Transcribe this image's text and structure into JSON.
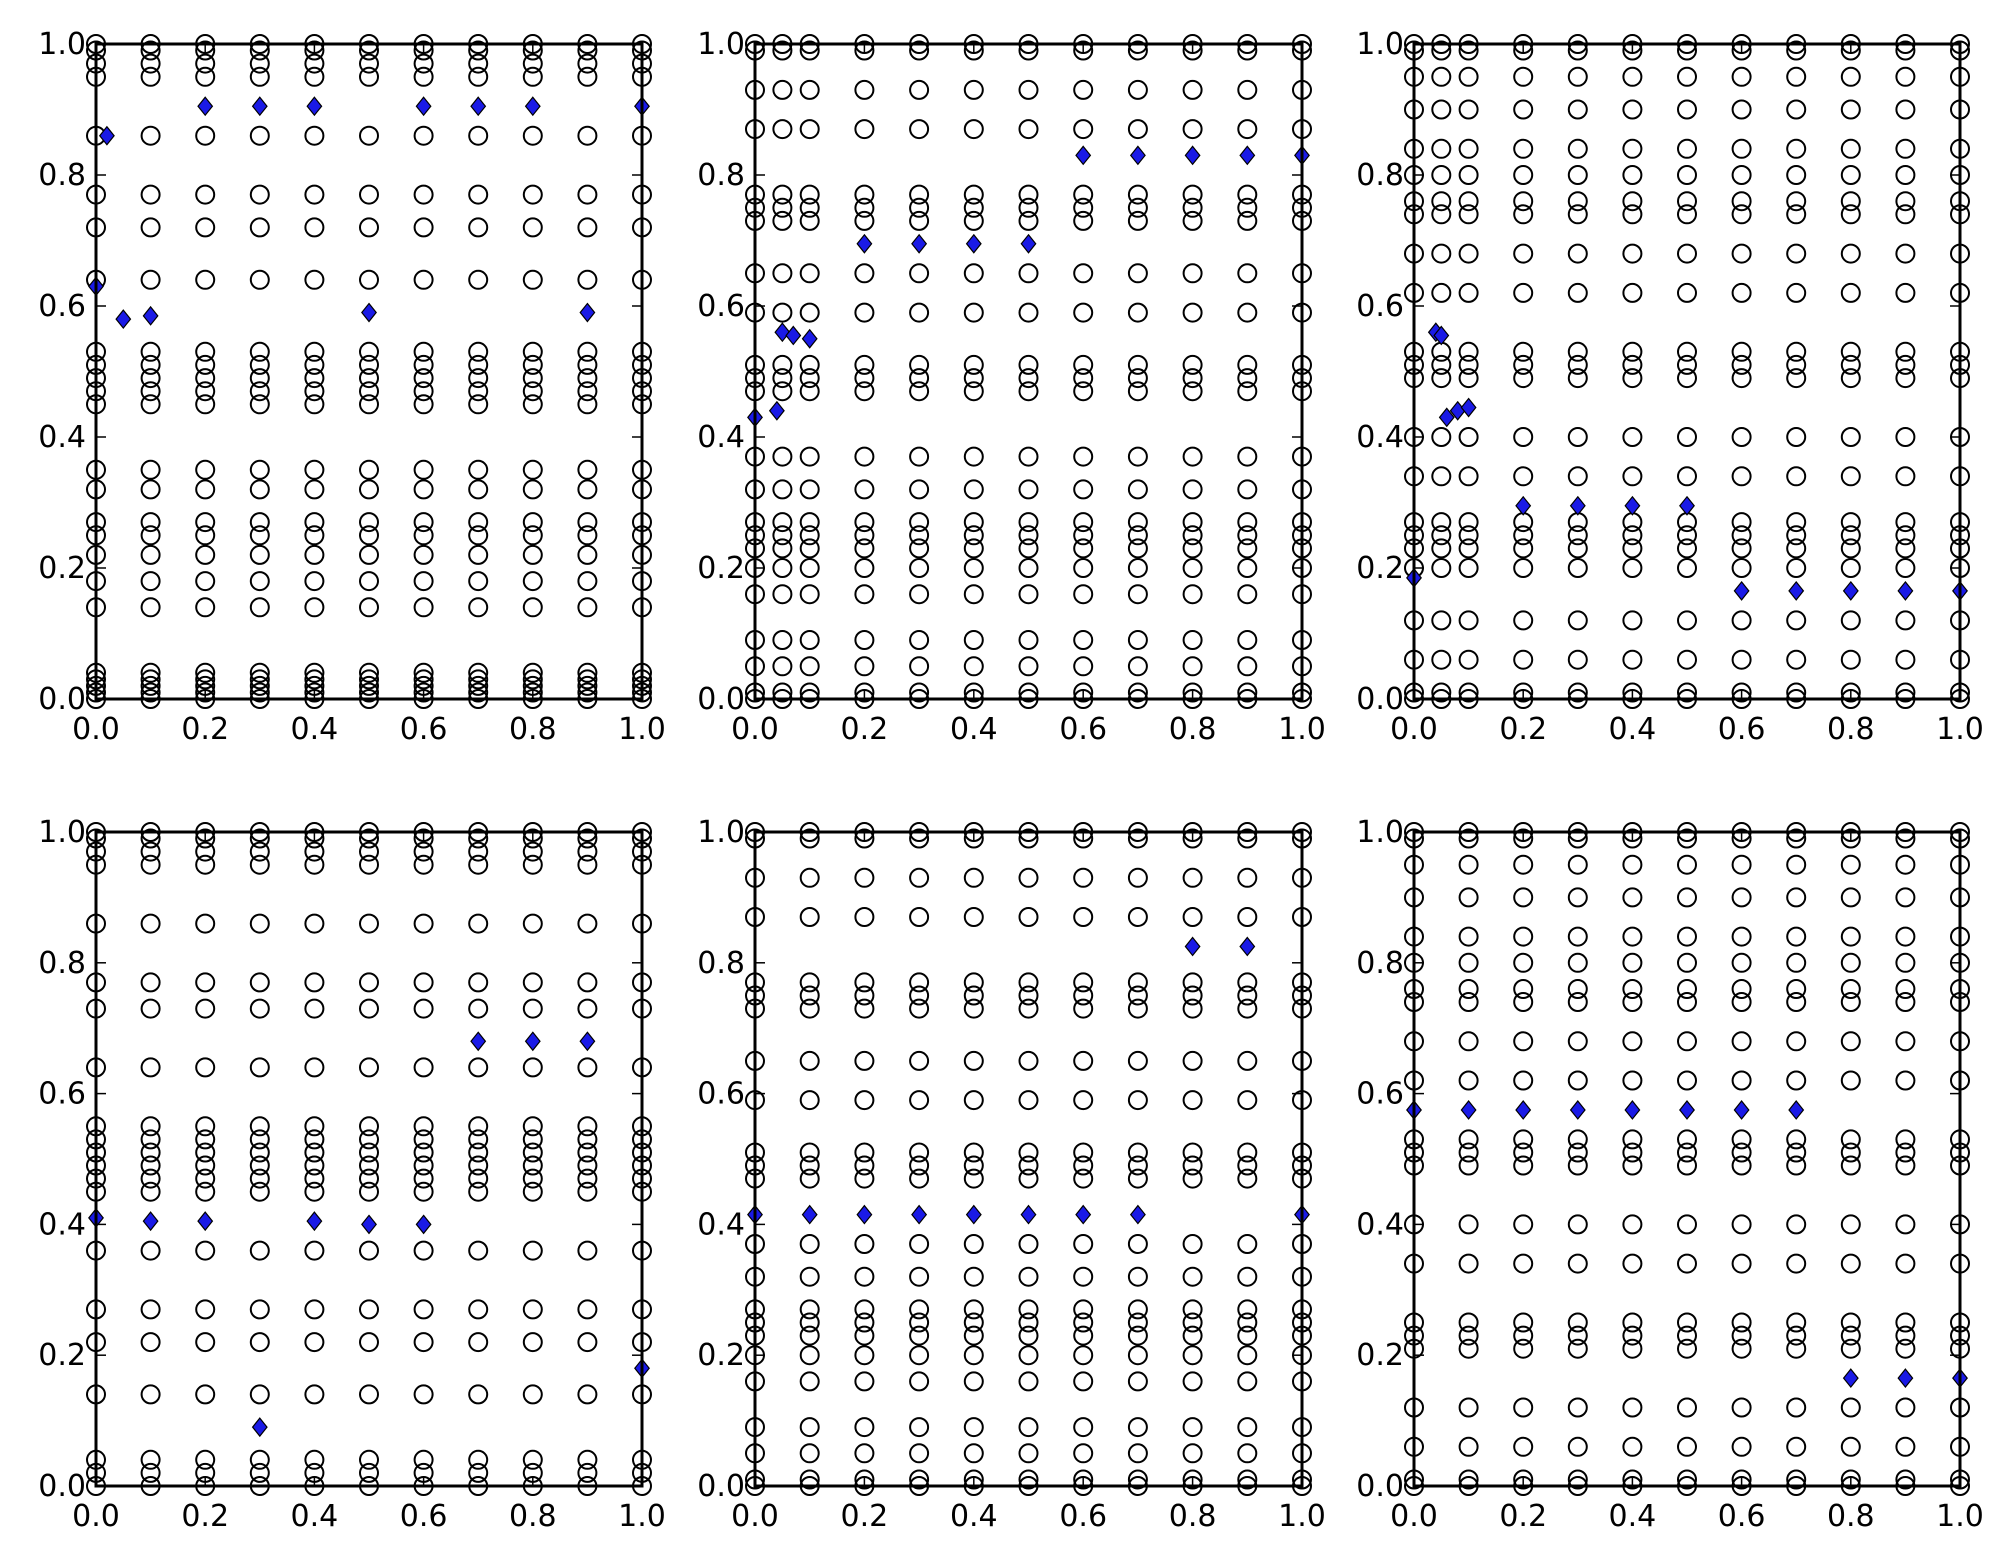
{
  "figure": {
    "layout": "2x3 grid of scatter panels",
    "circle_color": "#000000",
    "diamond_color": "#1a1ae6",
    "background": "#ffffff"
  },
  "chart_data": [
    {
      "type": "scatter",
      "panel": "top-left",
      "xlim": [
        0,
        1
      ],
      "ylim": [
        0,
        1
      ],
      "xticks": [
        "0.0",
        "0.2",
        "0.4",
        "0.6",
        "0.8",
        "1.0"
      ],
      "yticks": [
        "0.0",
        "0.2",
        "0.4",
        "0.6",
        "0.8",
        "1.0"
      ],
      "grid": false,
      "circle_columns_x": [
        0.0,
        0.1,
        0.2,
        0.3,
        0.4,
        0.5,
        0.6,
        0.7,
        0.8,
        0.9,
        1.0
      ],
      "circle_rows_y": [
        0.0,
        0.01,
        0.02,
        0.03,
        0.04,
        0.14,
        0.18,
        0.22,
        0.25,
        0.27,
        0.32,
        0.35,
        0.45,
        0.47,
        0.49,
        0.51,
        0.53,
        0.64,
        0.72,
        0.77,
        0.86,
        0.95,
        0.97,
        0.99,
        1.0
      ],
      "diamonds": [
        [
          0.0,
          0.63
        ],
        [
          0.02,
          0.86
        ],
        [
          0.05,
          0.58
        ],
        [
          0.1,
          0.585
        ],
        [
          0.2,
          0.905
        ],
        [
          0.3,
          0.905
        ],
        [
          0.4,
          0.905
        ],
        [
          0.5,
          0.59
        ],
        [
          0.6,
          0.905
        ],
        [
          0.7,
          0.905
        ],
        [
          0.8,
          0.905
        ],
        [
          0.9,
          0.59
        ],
        [
          1.0,
          0.905
        ]
      ]
    },
    {
      "type": "scatter",
      "panel": "top-center",
      "xlim": [
        0,
        1
      ],
      "ylim": [
        0,
        1
      ],
      "xticks": [
        "0.0",
        "0.2",
        "0.4",
        "0.6",
        "0.8",
        "1.0"
      ],
      "yticks": [
        "0.0",
        "0.2",
        "0.4",
        "0.6",
        "0.8",
        "1.0"
      ],
      "grid": false,
      "circle_columns_x": [
        0.0,
        0.05,
        0.1,
        0.2,
        0.3,
        0.4,
        0.5,
        0.6,
        0.7,
        0.8,
        0.9,
        1.0
      ],
      "circle_rows_y": [
        0.0,
        0.01,
        0.05,
        0.09,
        0.16,
        0.2,
        0.23,
        0.25,
        0.27,
        0.32,
        0.37,
        0.47,
        0.49,
        0.51,
        0.59,
        0.65,
        0.73,
        0.75,
        0.77,
        0.87,
        0.93,
        0.99,
        1.0
      ],
      "diamonds": [
        [
          0.0,
          0.43
        ],
        [
          0.04,
          0.44
        ],
        [
          0.05,
          0.56
        ],
        [
          0.07,
          0.555
        ],
        [
          0.1,
          0.55
        ],
        [
          0.2,
          0.695
        ],
        [
          0.3,
          0.695
        ],
        [
          0.4,
          0.695
        ],
        [
          0.5,
          0.695
        ],
        [
          0.6,
          0.83
        ],
        [
          0.7,
          0.83
        ],
        [
          0.8,
          0.83
        ],
        [
          0.9,
          0.83
        ],
        [
          1.0,
          0.83
        ]
      ]
    },
    {
      "type": "scatter",
      "panel": "top-right",
      "xlim": [
        0,
        1
      ],
      "ylim": [
        0,
        1
      ],
      "xticks": [
        "0.0",
        "0.2",
        "0.4",
        "0.6",
        "0.8",
        "1.0"
      ],
      "yticks": [
        "0.0",
        "0.2",
        "0.4",
        "0.6",
        "0.8",
        "1.0"
      ],
      "grid": false,
      "circle_columns_x": [
        0.0,
        0.05,
        0.1,
        0.2,
        0.3,
        0.4,
        0.5,
        0.6,
        0.7,
        0.8,
        0.9,
        1.0
      ],
      "circle_rows_y": [
        0.0,
        0.01,
        0.06,
        0.12,
        0.2,
        0.23,
        0.25,
        0.27,
        0.34,
        0.4,
        0.49,
        0.51,
        0.53,
        0.62,
        0.68,
        0.74,
        0.76,
        0.8,
        0.84,
        0.9,
        0.95,
        0.99,
        1.0
      ],
      "diamonds": [
        [
          0.0,
          0.185
        ],
        [
          0.04,
          0.56
        ],
        [
          0.05,
          0.555
        ],
        [
          0.06,
          0.43
        ],
        [
          0.08,
          0.44
        ],
        [
          0.1,
          0.445
        ],
        [
          0.2,
          0.295
        ],
        [
          0.3,
          0.295
        ],
        [
          0.4,
          0.295
        ],
        [
          0.5,
          0.295
        ],
        [
          0.6,
          0.165
        ],
        [
          0.7,
          0.165
        ],
        [
          0.8,
          0.165
        ],
        [
          0.9,
          0.165
        ],
        [
          1.0,
          0.165
        ]
      ]
    },
    {
      "type": "scatter",
      "panel": "bottom-left",
      "xlim": [
        0,
        1
      ],
      "ylim": [
        0,
        1
      ],
      "xticks": [
        "0.0",
        "0.2",
        "0.4",
        "0.6",
        "0.8",
        "1.0"
      ],
      "yticks": [
        "0.0",
        "0.2",
        "0.4",
        "0.6",
        "0.8",
        "1.0"
      ],
      "grid": false,
      "circle_columns_x": [
        0.0,
        0.1,
        0.2,
        0.3,
        0.4,
        0.5,
        0.6,
        0.7,
        0.8,
        0.9,
        1.0
      ],
      "circle_rows_y": [
        0.0,
        0.02,
        0.04,
        0.14,
        0.22,
        0.27,
        0.36,
        0.45,
        0.47,
        0.49,
        0.51,
        0.53,
        0.55,
        0.64,
        0.73,
        0.77,
        0.86,
        0.95,
        0.97,
        0.99,
        1.0
      ],
      "diamonds": [
        [
          0.0,
          0.41
        ],
        [
          0.1,
          0.405
        ],
        [
          0.2,
          0.405
        ],
        [
          0.3,
          0.09
        ],
        [
          0.4,
          0.405
        ],
        [
          0.5,
          0.4
        ],
        [
          0.6,
          0.4
        ],
        [
          0.7,
          0.68
        ],
        [
          0.8,
          0.68
        ],
        [
          0.9,
          0.68
        ],
        [
          1.0,
          0.18
        ]
      ]
    },
    {
      "type": "scatter",
      "panel": "bottom-center",
      "xlim": [
        0,
        1
      ],
      "ylim": [
        0,
        1
      ],
      "xticks": [
        "0.0",
        "0.2",
        "0.4",
        "0.6",
        "0.8",
        "1.0"
      ],
      "yticks": [
        "0.0",
        "0.2",
        "0.4",
        "0.6",
        "0.8",
        "1.0"
      ],
      "grid": false,
      "circle_columns_x": [
        0.0,
        0.1,
        0.2,
        0.3,
        0.4,
        0.5,
        0.6,
        0.7,
        0.8,
        0.9,
        1.0
      ],
      "circle_rows_y": [
        0.0,
        0.01,
        0.05,
        0.09,
        0.16,
        0.2,
        0.23,
        0.25,
        0.27,
        0.32,
        0.37,
        0.47,
        0.49,
        0.51,
        0.59,
        0.65,
        0.73,
        0.75,
        0.77,
        0.87,
        0.93,
        0.99,
        1.0
      ],
      "diamonds": [
        [
          0.0,
          0.415
        ],
        [
          0.1,
          0.415
        ],
        [
          0.2,
          0.415
        ],
        [
          0.3,
          0.415
        ],
        [
          0.4,
          0.415
        ],
        [
          0.5,
          0.415
        ],
        [
          0.6,
          0.415
        ],
        [
          0.7,
          0.415
        ],
        [
          0.8,
          0.825
        ],
        [
          0.9,
          0.825
        ],
        [
          1.0,
          0.415
        ]
      ]
    },
    {
      "type": "scatter",
      "panel": "bottom-right",
      "xlim": [
        0,
        1
      ],
      "ylim": [
        0,
        1
      ],
      "xticks": [
        "0.0",
        "0.2",
        "0.4",
        "0.6",
        "0.8",
        "1.0"
      ],
      "yticks": [
        "0.0",
        "0.2",
        "0.4",
        "0.6",
        "0.8",
        "1.0"
      ],
      "grid": false,
      "circle_columns_x": [
        0.0,
        0.1,
        0.2,
        0.3,
        0.4,
        0.5,
        0.6,
        0.7,
        0.8,
        0.9,
        1.0
      ],
      "circle_rows_y": [
        0.0,
        0.01,
        0.06,
        0.12,
        0.21,
        0.23,
        0.25,
        0.34,
        0.4,
        0.49,
        0.51,
        0.53,
        0.62,
        0.68,
        0.74,
        0.76,
        0.8,
        0.84,
        0.9,
        0.95,
        0.99,
        1.0
      ],
      "diamonds": [
        [
          0.0,
          0.575
        ],
        [
          0.1,
          0.575
        ],
        [
          0.2,
          0.575
        ],
        [
          0.3,
          0.575
        ],
        [
          0.4,
          0.575
        ],
        [
          0.5,
          0.575
        ],
        [
          0.6,
          0.575
        ],
        [
          0.7,
          0.575
        ],
        [
          0.8,
          0.165
        ],
        [
          0.9,
          0.165
        ],
        [
          1.0,
          0.165
        ]
      ]
    }
  ]
}
